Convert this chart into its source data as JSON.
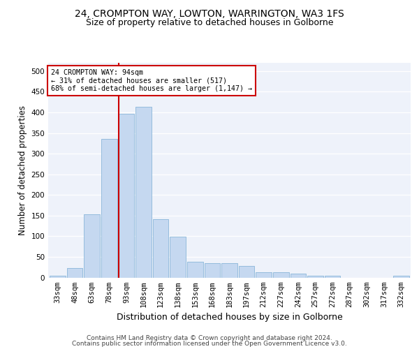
{
  "title1": "24, CROMPTON WAY, LOWTON, WARRINGTON, WA3 1FS",
  "title2": "Size of property relative to detached houses in Golborne",
  "xlabel": "Distribution of detached houses by size in Golborne",
  "ylabel": "Number of detached properties",
  "categories": [
    "33sqm",
    "48sqm",
    "63sqm",
    "78sqm",
    "93sqm",
    "108sqm",
    "123sqm",
    "138sqm",
    "153sqm",
    "168sqm",
    "183sqm",
    "197sqm",
    "212sqm",
    "227sqm",
    "242sqm",
    "257sqm",
    "272sqm",
    "287sqm",
    "302sqm",
    "317sqm",
    "332sqm"
  ],
  "values": [
    5,
    23,
    153,
    335,
    396,
    413,
    142,
    99,
    38,
    35,
    35,
    28,
    12,
    12,
    9,
    5,
    4,
    0,
    0,
    0,
    4
  ],
  "bar_color": "#c5d8f0",
  "bar_edge_color": "#7aadd4",
  "vline_index": 4,
  "vline_color": "#cc0000",
  "annotation_text": "24 CROMPTON WAY: 94sqm\n← 31% of detached houses are smaller (517)\n68% of semi-detached houses are larger (1,147) →",
  "annotation_box_color": "#ffffff",
  "annotation_box_edge": "#cc0000",
  "ylim": [
    0,
    520
  ],
  "yticks": [
    0,
    50,
    100,
    150,
    200,
    250,
    300,
    350,
    400,
    450,
    500
  ],
  "footer1": "Contains HM Land Registry data © Crown copyright and database right 2024.",
  "footer2": "Contains public sector information licensed under the Open Government Licence v3.0.",
  "bg_color": "#eef2fa",
  "grid_color": "#ffffff",
  "title1_fontsize": 10,
  "title2_fontsize": 9,
  "axis_label_fontsize": 8.5,
  "tick_fontsize": 7.5,
  "footer_fontsize": 6.5
}
